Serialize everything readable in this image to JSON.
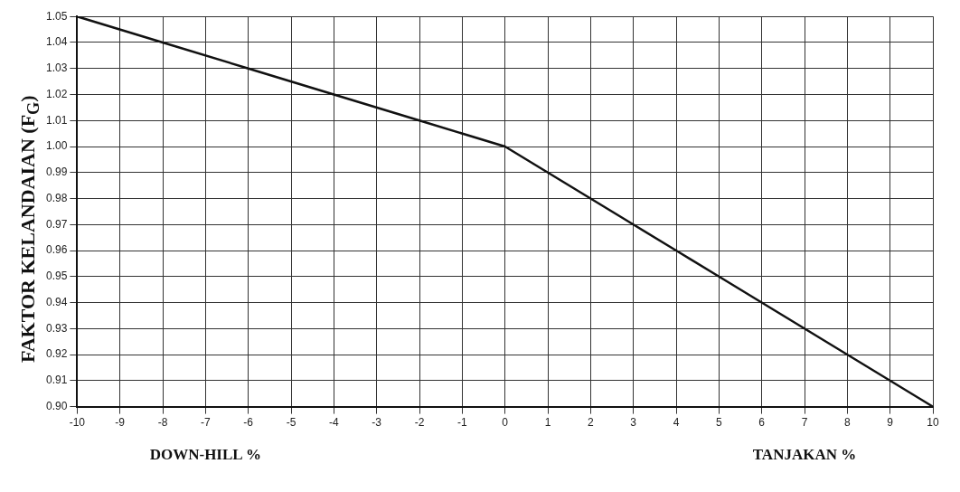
{
  "chart_data": {
    "type": "line",
    "ylabel": "FAKTOR KELANDAIAN (F$_{G}$)",
    "x": [
      -10,
      -8,
      -6,
      -4,
      -2,
      0,
      1,
      2,
      3,
      4,
      5,
      10
    ],
    "series": [
      {
        "color": "#111111",
        "values": [
          1.05,
          1.04,
          1.03,
          1.02,
          1.01,
          1.0,
          0.99,
          0.98,
          0.97,
          0.96,
          0.95,
          0.9
        ]
      }
    ],
    "xlim": [
      -10,
      10
    ],
    "xticks": [
      -10,
      -9,
      -8,
      -7,
      -6,
      -5,
      -4,
      -3,
      -2,
      -1,
      0,
      1,
      2,
      3,
      4,
      5,
      6,
      7,
      8,
      9,
      10
    ],
    "ylim": [
      0.9,
      1.05
    ],
    "yticks": [
      {
        "value": 0.9,
        "label": "0.90"
      },
      0.91,
      0.92,
      0.93,
      0.94,
      0.95,
      0.96,
      0.97,
      0.98,
      0.99,
      {
        "value": 1,
        "label": "1.00"
      },
      1.01,
      1.02,
      1.03,
      1.04,
      1.05
    ],
    "grid": true,
    "legend": false,
    "marker": "none",
    "line_style": "solid",
    "annotations": [
      "DOWN-HILL %",
      "TANJAKAN %"
    ]
  }
}
